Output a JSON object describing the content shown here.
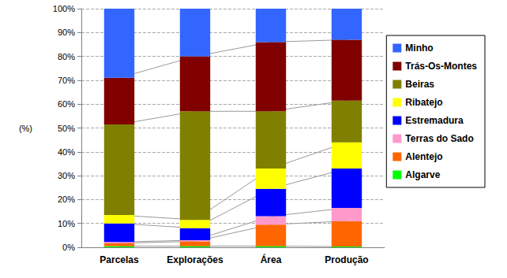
{
  "chart_data": {
    "type": "bar",
    "stacked": true,
    "grid": true,
    "legend": "right",
    "y_label": "(%)",
    "categories": [
      "Parcelas",
      "Explorações",
      "Área",
      "Produção"
    ],
    "ylim": [
      0,
      100
    ],
    "yticks": [
      {
        "value": 0,
        "label": "0%"
      },
      {
        "value": 10,
        "label": "10%"
      },
      {
        "value": 20,
        "label": "20%"
      },
      {
        "value": 30,
        "label": "30%"
      },
      {
        "value": 40,
        "label": "40%"
      },
      {
        "value": 50,
        "label": "50%"
      },
      {
        "value": 60,
        "label": "60%"
      },
      {
        "value": 70,
        "label": "70%"
      },
      {
        "value": 80,
        "label": "80%"
      },
      {
        "value": 90,
        "label": "90%"
      },
      {
        "value": 100,
        "label": "100%"
      }
    ],
    "series": [
      {
        "name": "Minho",
        "color": "#3366ff",
        "values": [
          29,
          20,
          14,
          13
        ]
      },
      {
        "name": "Trás-Os-Montes",
        "color": "#800000",
        "values": [
          19.5,
          23,
          29,
          25.5
        ]
      },
      {
        "name": "Beiras",
        "color": "#808000",
        "values": [
          38,
          45.5,
          24,
          17.5
        ]
      },
      {
        "name": "Ribatejo",
        "color": "#ffff00",
        "values": [
          3.5,
          3.5,
          8.5,
          11
        ]
      },
      {
        "name": "Estremadura",
        "color": "#0000ff",
        "values": [
          7.8,
          5,
          11.5,
          16.5
        ]
      },
      {
        "name": "Terras do Sado",
        "color": "#ff99cc",
        "values": [
          0.5,
          0.5,
          3.5,
          5.5
        ]
      },
      {
        "name": "Alentejo",
        "color": "#ff6600",
        "values": [
          1.2,
          2,
          9,
          10.7
        ]
      },
      {
        "name": "Algarve",
        "color": "#00ff00",
        "values": [
          0.5,
          0.5,
          0.5,
          0.3
        ]
      }
    ]
  }
}
